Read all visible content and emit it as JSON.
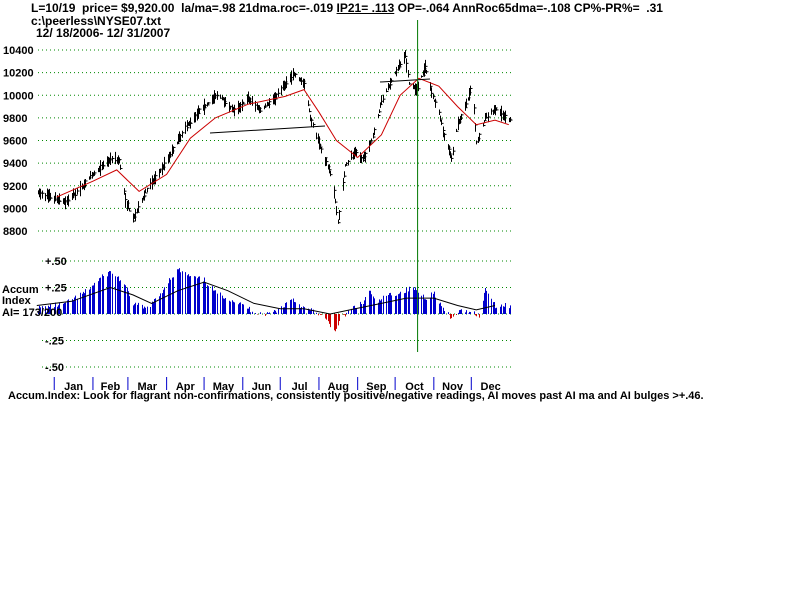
{
  "header": {
    "line1_a": "L=10/19  price= $9,920.00  la/ma=.98 21dma.roc=-.019 ",
    "ip21": "IP21= .113",
    "line1_b": " OP=-.064 AnnRoc65dma=-.108 CP%-PR%=  .31",
    "file": "c:\\peerless\\NYSE07.txt",
    "date_range": "12/ 18/2006- 12/ 31/2007"
  },
  "colors": {
    "price_bars": "#000000",
    "moving_average": "#cc0000",
    "ai_positive": "#0000cc",
    "ai_negative": "#cc0000",
    "ai_ma": "#000000",
    "marker_line": "#007700",
    "grid": "#008800"
  },
  "chart_data": [
    {
      "type": "line",
      "y_ticks": [
        "10400",
        "10200",
        "10000",
        "9800",
        "9600",
        "9400",
        "9200",
        "9000",
        "8800"
      ],
      "y_tick_values": [
        10400,
        10200,
        10000,
        9800,
        9600,
        9400,
        9200,
        9000,
        8800
      ],
      "ylim": [
        8800,
        10400
      ],
      "grid": true,
      "series": [
        {
          "points": [
            [
              "Dec 18",
              9140
            ],
            [
              "Jan 3",
              9080
            ],
            [
              "Jan 10",
              9060
            ],
            [
              "Jan 20",
              9150
            ],
            [
              "Feb 1",
              9300
            ],
            [
              "Feb 15",
              9440
            ],
            [
              "Feb 22",
              9430
            ],
            [
              "Feb 27",
              9070
            ],
            [
              "Mar 5",
              8900
            ],
            [
              "Mar 10",
              9020
            ],
            [
              "Mar 15",
              9150
            ],
            [
              "Mar 25",
              9300
            ],
            [
              "Apr 5",
              9500
            ],
            [
              "Apr 15",
              9700
            ],
            [
              "Apr 25",
              9840
            ],
            [
              "May 5",
              9940
            ],
            [
              "May 12",
              10010
            ],
            [
              "May 25",
              9860
            ],
            [
              "Jun 5",
              9970
            ],
            [
              "Jun 15",
              9870
            ],
            [
              "Jun 25",
              9960
            ],
            [
              "Jul 5",
              10100
            ],
            [
              "Jul 12",
              10190
            ],
            [
              "Jul 20",
              10100
            ],
            [
              "Jul 25",
              9800
            ],
            [
              "Aug 1",
              9580
            ],
            [
              "Aug 7",
              9400
            ],
            [
              "Aug 12",
              9250
            ],
            [
              "Aug 16",
              8880
            ],
            [
              "Aug 22",
              9380
            ],
            [
              "Aug 30",
              9500
            ],
            [
              "Sep 5",
              9430
            ],
            [
              "Sep 12",
              9600
            ],
            [
              "Sep 20",
              9950
            ],
            [
              "Oct 1",
              10200
            ],
            [
              "Oct 9",
              10350
            ],
            [
              "Oct 12",
              10100
            ],
            [
              "Oct 18",
              10050
            ],
            [
              "Oct 25",
              10250
            ],
            [
              "Nov 1",
              9950
            ],
            [
              "Nov 5",
              9850
            ],
            [
              "Nov 10",
              9600
            ],
            [
              "Nov 15",
              9450
            ],
            [
              "Nov 20",
              9750
            ],
            [
              "Nov 25",
              9850
            ],
            [
              "Nov 30",
              10050
            ],
            [
              "Dec 3",
              9880
            ],
            [
              "Dec 5",
              9580
            ],
            [
              "Dec 12",
              9800
            ],
            [
              "Dec 20",
              9880
            ],
            [
              "Dec 31",
              9780
            ]
          ]
        },
        {
          "points": [
            [
              "Jan 3",
              9100
            ],
            [
              "Feb 1",
              9240
            ],
            [
              "Feb 20",
              9340
            ],
            [
              "Mar 10",
              9150
            ],
            [
              "Apr 1",
              9300
            ],
            [
              "Apr 20",
              9620
            ],
            [
              "May 10",
              9800
            ],
            [
              "Jun 5",
              9920
            ],
            [
              "Jul 5",
              9990
            ],
            [
              "Jul 20",
              10050
            ],
            [
              "Aug 1",
              9850
            ],
            [
              "Aug 15",
              9600
            ],
            [
              "Sep 1",
              9450
            ],
            [
              "Sep 20",
              9650
            ],
            [
              "Oct 5",
              10000
            ],
            [
              "Oct 20",
              10150
            ],
            [
              "Nov 5",
              10080
            ],
            [
              "Nov 20",
              9900
            ],
            [
              "Dec 5",
              9740
            ],
            [
              "Dec 20",
              9780
            ],
            [
              "Dec 31",
              9740
            ]
          ]
        }
      ]
    },
    {
      "type": "area",
      "title": "Accum Index",
      "y_ticks": [
        "+.50",
        "+.25",
        "-.25",
        "-.50"
      ],
      "y_tick_values": [
        0.5,
        0.25,
        -0.25,
        -0.5
      ],
      "ylim": [
        -0.5,
        0.5
      ],
      "readout": "AI= 173/200",
      "categories": [
        "Jan",
        "Feb",
        "Mar",
        "Apr",
        "May",
        "Jun",
        "Jul",
        "Aug",
        "Sep",
        "Oct",
        "Nov",
        "Dec"
      ],
      "series": [
        {
          "points": [
            [
              "Dec 18",
              0.05
            ],
            [
              "Jan 10",
              0.1
            ],
            [
              "Jan 25",
              0.2
            ],
            [
              "Feb 8",
              0.35
            ],
            [
              "Feb 15",
              0.4
            ],
            [
              "Feb 25",
              0.3
            ],
            [
              "Mar 5",
              0.1
            ],
            [
              "Mar 15",
              0.05
            ],
            [
              "Mar 25",
              0.15
            ],
            [
              "Apr 1",
              0.3
            ],
            [
              "Apr 10",
              0.42
            ],
            [
              "Apr 20",
              0.35
            ],
            [
              "May 1",
              0.32
            ],
            [
              "May 10",
              0.2
            ],
            [
              "May 20",
              0.15
            ],
            [
              "Jun 1",
              0.08
            ],
            [
              "Jun 10",
              0.02
            ],
            [
              "Jun 20",
              0.0
            ],
            [
              "Jul 1",
              0.05
            ],
            [
              "Jul 10",
              0.15
            ],
            [
              "Jul 20",
              0.05
            ],
            [
              "Jul 30",
              0.02
            ],
            [
              "Aug 8",
              -0.08
            ],
            [
              "Aug 13",
              -0.16
            ],
            [
              "Aug 20",
              -0.03
            ],
            [
              "Aug 28",
              0.06
            ],
            [
              "Sep 5",
              0.1
            ],
            [
              "Sep 10",
              0.23
            ],
            [
              "Sep 15",
              0.1
            ],
            [
              "Sep 25",
              0.18
            ],
            [
              "Oct 5",
              0.2
            ],
            [
              "Oct 15",
              0.25
            ],
            [
              "Oct 25",
              0.15
            ],
            [
              "Nov 1",
              0.2
            ],
            [
              "Nov 8",
              0.05
            ],
            [
              "Nov 15",
              -0.05
            ],
            [
              "Nov 20",
              0.02
            ],
            [
              "Nov 30",
              0.03
            ],
            [
              "Dec 8",
              -0.02
            ],
            [
              "Dec 12",
              0.25
            ],
            [
              "Dec 20",
              0.08
            ]
          ]
        },
        {
          "points": [
            [
              "Dec 18",
              0.08
            ],
            [
              "Jan 15",
              0.12
            ],
            [
              "Feb 15",
              0.25
            ],
            [
              "Mar 5",
              0.18
            ],
            [
              "Mar 20",
              0.1
            ],
            [
              "Apr 10",
              0.22
            ],
            [
              "May 1",
              0.3
            ],
            [
              "May 20",
              0.22
            ],
            [
              "Jun 10",
              0.1
            ],
            [
              "Jul 1",
              0.05
            ],
            [
              "Jul 20",
              0.05
            ],
            [
              "Aug 10",
              0.0
            ],
            [
              "Aug 30",
              0.05
            ],
            [
              "Sep 20",
              0.1
            ],
            [
              "Oct 10",
              0.15
            ],
            [
              "Nov 1",
              0.15
            ],
            [
              "Nov 20",
              0.08
            ],
            [
              "Dec 5",
              0.04
            ],
            [
              "Dec 20",
              0.08
            ]
          ]
        }
      ]
    }
  ],
  "annotations": {
    "marker_date": "Oct 19"
  },
  "footnote": "Accum.Index: Look for flagrant non-confirmations, consistently positive/negative readings, AI moves past AI ma and AI bulges >+.46."
}
